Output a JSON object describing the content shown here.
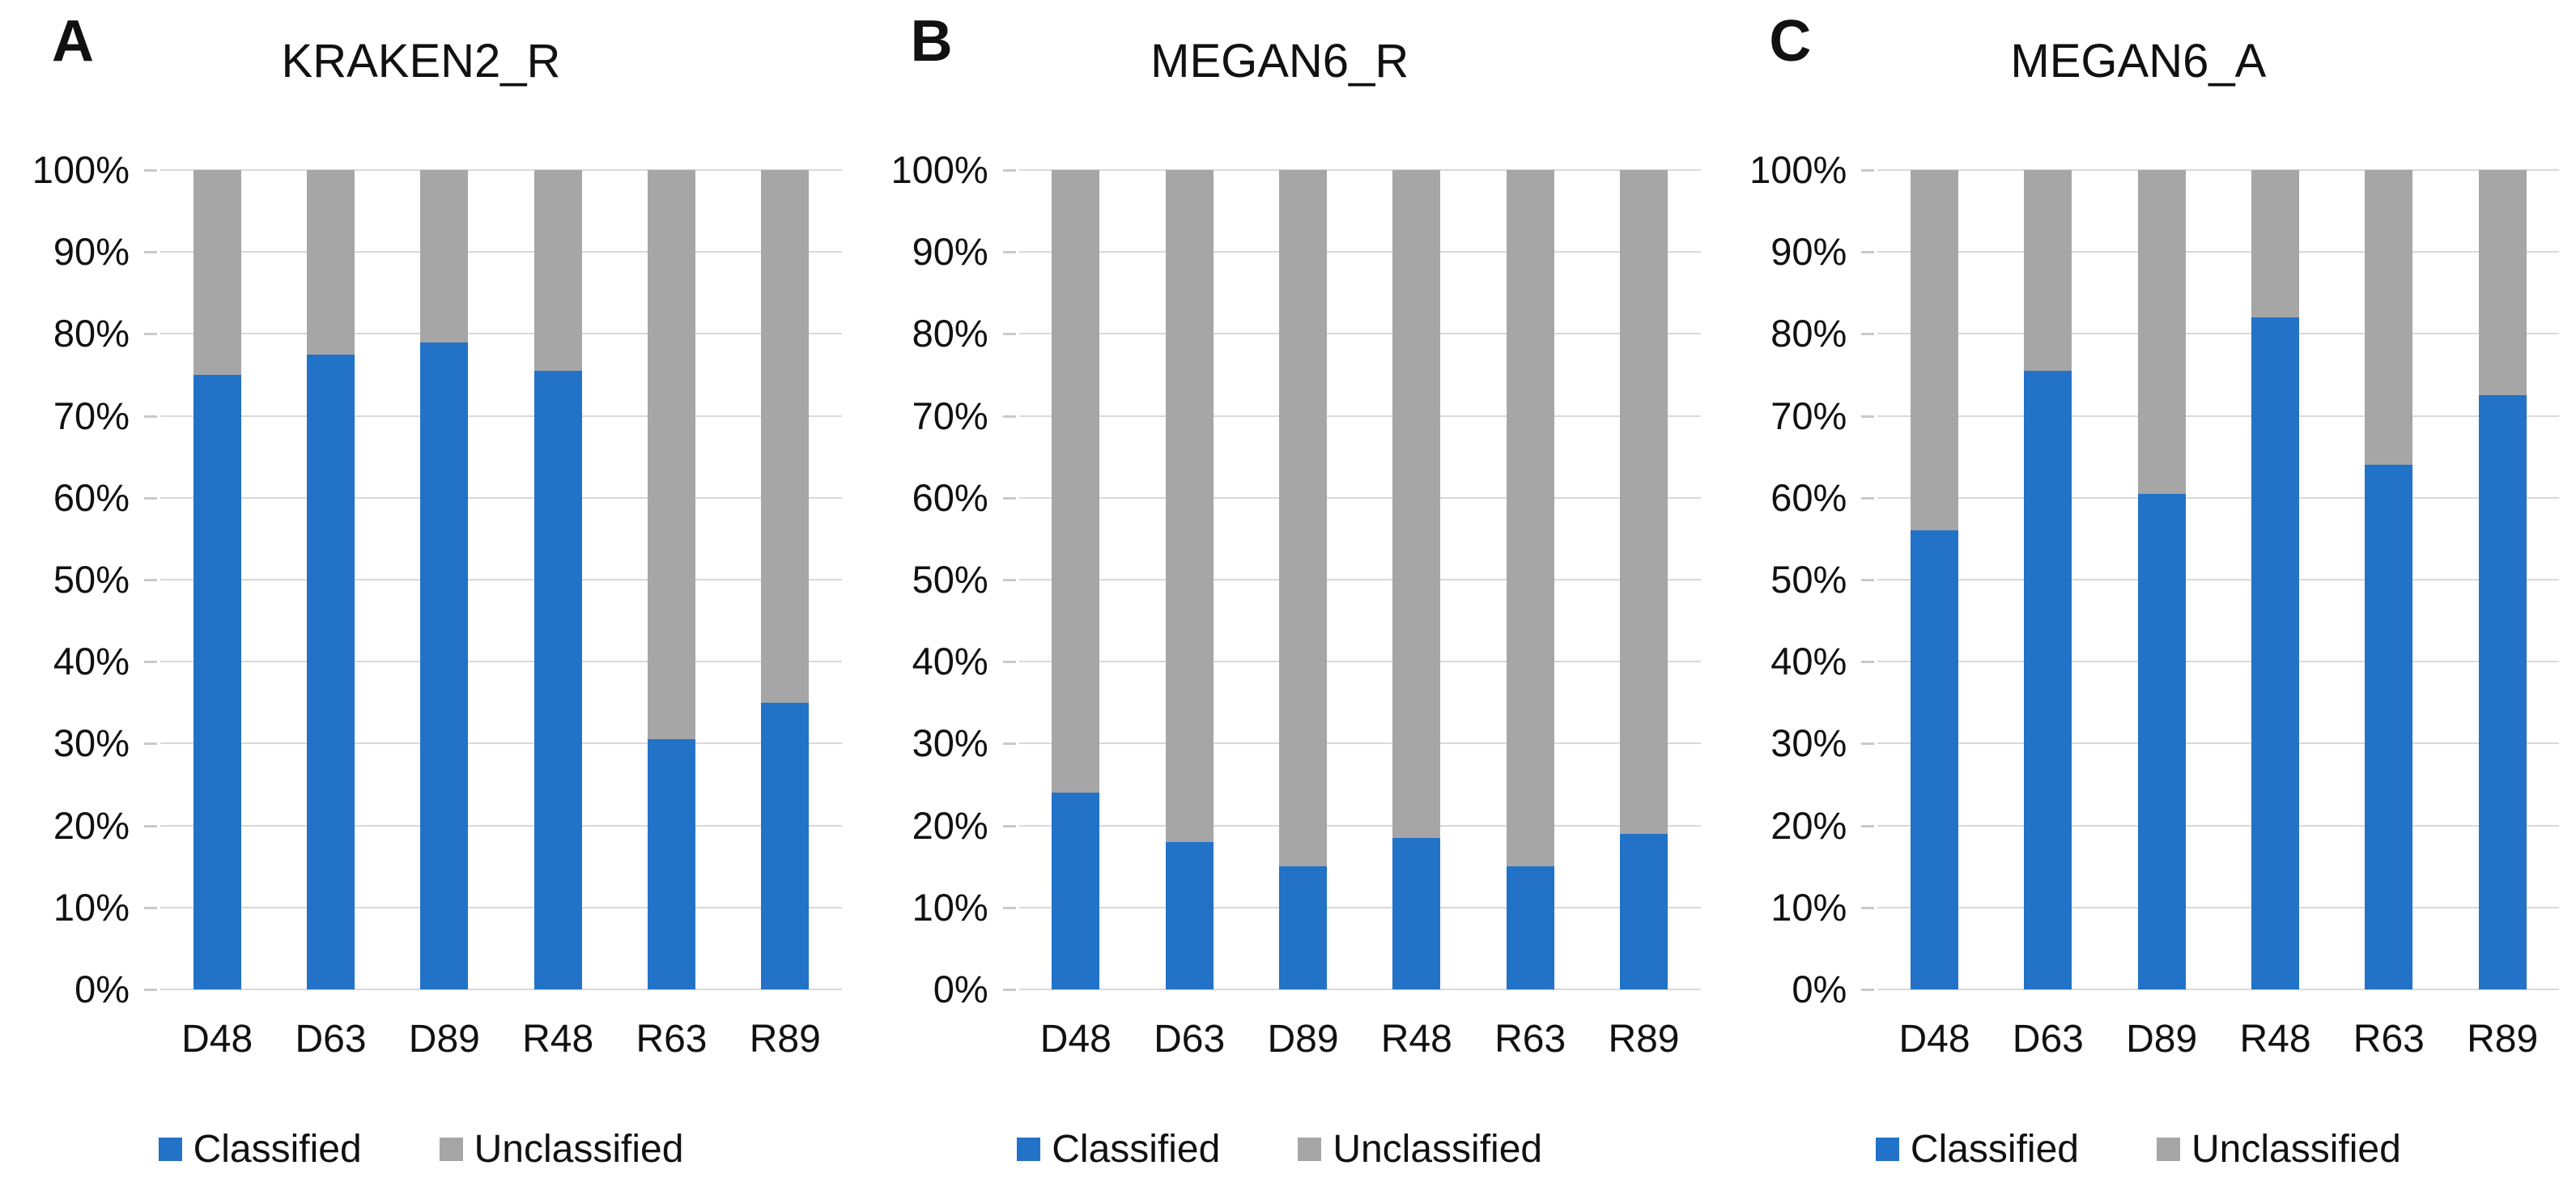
{
  "figure": {
    "y_axis_ticks": [
      "100%",
      "90%",
      "80%",
      "70%",
      "60%",
      "50%",
      "40%",
      "30%",
      "20%",
      "10%",
      "0%"
    ],
    "legend": [
      {
        "name": "Classified",
        "color_key": "classified"
      },
      {
        "name": "Unclassified",
        "color_key": "unclassified"
      }
    ],
    "colors": {
      "classified": "#2272C8",
      "unclassified": "#A6A6A6",
      "gridline": "#D9D9D9",
      "text": "#111111"
    }
  },
  "chart_data": [
    {
      "type": "bar",
      "stacked": true,
      "panel_label": "A",
      "title": "KRAKEN2_R",
      "categories": [
        "D48",
        "D63",
        "D89",
        "R48",
        "R63",
        "R89"
      ],
      "series": [
        {
          "name": "Classified",
          "values": [
            75,
            77.5,
            79,
            75.5,
            30.5,
            35
          ]
        },
        {
          "name": "Unclassified",
          "values": [
            25,
            22.5,
            21,
            24.5,
            69.5,
            65
          ]
        }
      ],
      "ylabel": "",
      "ylim": [
        0,
        100
      ],
      "y_tick_format": "percent",
      "grid": true,
      "legend_position": "bottom"
    },
    {
      "type": "bar",
      "stacked": true,
      "panel_label": "B",
      "title": "MEGAN6_R",
      "categories": [
        "D48",
        "D63",
        "D89",
        "R48",
        "R63",
        "R89"
      ],
      "series": [
        {
          "name": "Classified",
          "values": [
            24,
            18,
            15,
            18.5,
            15,
            19
          ]
        },
        {
          "name": "Unclassified",
          "values": [
            76,
            82,
            85,
            81.5,
            85,
            81
          ]
        }
      ],
      "ylabel": "",
      "ylim": [
        0,
        100
      ],
      "y_tick_format": "percent",
      "grid": true,
      "legend_position": "bottom"
    },
    {
      "type": "bar",
      "stacked": true,
      "panel_label": "C",
      "title": "MEGAN6_A",
      "categories": [
        "D48",
        "D63",
        "D89",
        "R48",
        "R63",
        "R89"
      ],
      "series": [
        {
          "name": "Classified",
          "values": [
            56,
            75.5,
            60.5,
            82,
            64,
            72.5
          ]
        },
        {
          "name": "Unclassified",
          "values": [
            44,
            24.5,
            39.5,
            18,
            36,
            27.5
          ]
        }
      ],
      "ylabel": "",
      "ylim": [
        0,
        100
      ],
      "y_tick_format": "percent",
      "grid": true,
      "legend_position": "bottom"
    }
  ]
}
